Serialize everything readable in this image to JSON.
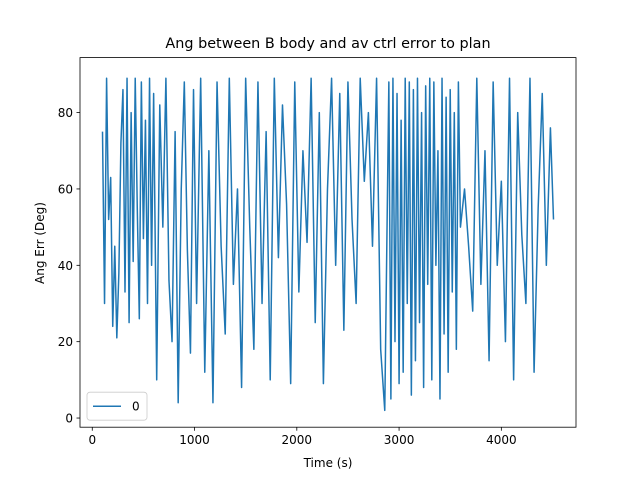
{
  "chart_data": {
    "type": "line",
    "title": "Ang between B body and av ctrl error to plan",
    "xlabel": "Time (s)",
    "ylabel": "Ang Err (Deg)",
    "x": [
      100,
      120,
      140,
      160,
      180,
      200,
      220,
      240,
      260,
      280,
      300,
      320,
      340,
      360,
      380,
      400,
      420,
      440,
      460,
      480,
      500,
      520,
      540,
      560,
      580,
      600,
      630,
      660,
      690,
      720,
      750,
      780,
      810,
      840,
      870,
      900,
      930,
      960,
      990,
      1020,
      1060,
      1100,
      1140,
      1180,
      1220,
      1260,
      1300,
      1340,
      1380,
      1420,
      1460,
      1500,
      1540,
      1580,
      1620,
      1660,
      1700,
      1740,
      1780,
      1820,
      1860,
      1900,
      1940,
      1980,
      2020,
      2060,
      2100,
      2140,
      2180,
      2220,
      2260,
      2300,
      2340,
      2380,
      2420,
      2460,
      2500,
      2540,
      2580,
      2620,
      2660,
      2700,
      2740,
      2780,
      2820,
      2860,
      2900,
      2920,
      2940,
      2960,
      2980,
      3000,
      3020,
      3040,
      3060,
      3080,
      3100,
      3120,
      3140,
      3160,
      3180,
      3200,
      3220,
      3240,
      3260,
      3280,
      3300,
      3320,
      3340,
      3360,
      3380,
      3400,
      3420,
      3440,
      3460,
      3480,
      3500,
      3520,
      3540,
      3560,
      3580,
      3600,
      3640,
      3680,
      3720,
      3760,
      3800,
      3840,
      3880,
      3920,
      3960,
      4000,
      4040,
      4080,
      4120,
      4160,
      4200,
      4240,
      4280,
      4320,
      4360,
      4400,
      4440,
      4480,
      4510
    ],
    "series": [
      {
        "name": "0",
        "color": "#1f77b4",
        "values": [
          75,
          30,
          89,
          52,
          63,
          24,
          45,
          21,
          38,
          72,
          86,
          33,
          89,
          25,
          80,
          41,
          89,
          55,
          26,
          88,
          47,
          78,
          30,
          89,
          40,
          85,
          10,
          82,
          50,
          89,
          36,
          20,
          75,
          4,
          60,
          88,
          44,
          17,
          86,
          30,
          89,
          12,
          70,
          4,
          88,
          45,
          22,
          89,
          35,
          60,
          8,
          89,
          50,
          18,
          88,
          30,
          75,
          10,
          89,
          42,
          82,
          56,
          9,
          88,
          33,
          70,
          46,
          89,
          25,
          80,
          9,
          60,
          89,
          40,
          85,
          23,
          88,
          52,
          30,
          89,
          62,
          80,
          45,
          89,
          18,
          2,
          88,
          5,
          89,
          20,
          85,
          9,
          78,
          12,
          89,
          30,
          88,
          6,
          86,
          15,
          89,
          25,
          80,
          8,
          87,
          35,
          89,
          10,
          88,
          40,
          70,
          5,
          89,
          22,
          84,
          12,
          86,
          33,
          80,
          18,
          88,
          50,
          60,
          45,
          28,
          89,
          35,
          70,
          15,
          88,
          40,
          62,
          20,
          89,
          10,
          80,
          48,
          30,
          89,
          12,
          55,
          85,
          40,
          76,
          52
        ]
      }
    ],
    "xlim": [
      -120,
      4730
    ],
    "xticks": [
      0,
      1000,
      2000,
      3000,
      4000
    ],
    "ylim": [
      -2.4,
      94.4
    ],
    "yticks": [
      0,
      20,
      40,
      60,
      80
    ],
    "legend": "lower left"
  }
}
